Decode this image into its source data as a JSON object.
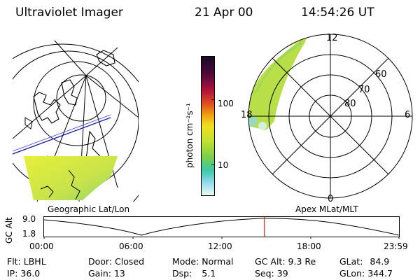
{
  "header": {
    "instrument": "Ultraviolet Imager",
    "date": "21 Apr 00",
    "time": "14:54:26 UT"
  },
  "left_panel": {
    "caption": "Geographic Lat/Lon"
  },
  "right_panel": {
    "caption": "Apex MLat/MLT",
    "mlt_labels": {
      "top": "12",
      "left": "18",
      "right": "6",
      "bottom": "0"
    },
    "lat_labels": [
      "60",
      "70",
      "80"
    ]
  },
  "colorbar": {
    "unit_label": "photon cm⁻²s⁻¹",
    "tick_labels": [
      "100",
      "10"
    ]
  },
  "altitude_plot": {
    "ylabel": "GC Alt",
    "y_ticks": [
      "9.0",
      "1.8"
    ],
    "x_ticks": [
      "00:00",
      "06:00",
      "12:00",
      "18:00",
      "23:59"
    ],
    "marker_time": "14:54"
  },
  "status": {
    "filter_label": "Flt:",
    "filter_value": "LBHL",
    "door_label": "Door:",
    "door_value": "Closed",
    "mode_label": "Mode:",
    "mode_value": "Normal",
    "gcalt_label": "GC Alt:",
    "gcalt_value": "9.3 Re",
    "glat_label": "GLat:",
    "glat_value": "84.9",
    "ip_label": "IP:",
    "ip_value": "36.0",
    "gain_label": "Gain:",
    "gain_value": "13",
    "dsp_label": "Dsp:",
    "dsp_value": "5.1",
    "seq_label": "Seq:",
    "seq_value": "39",
    "glon_label": "GLon:",
    "glon_value": "344.7"
  }
}
